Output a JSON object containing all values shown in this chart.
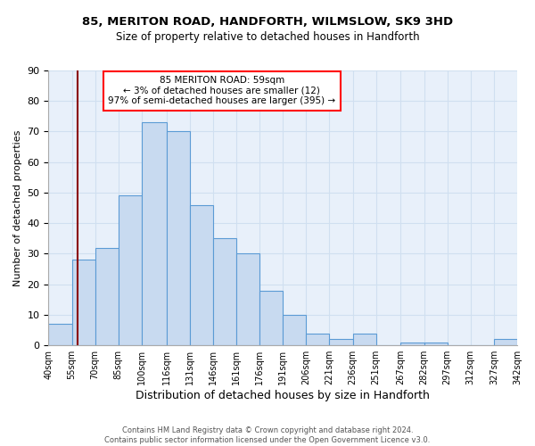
{
  "title1": "85, MERITON ROAD, HANDFORTH, WILMSLOW, SK9 3HD",
  "title2": "Size of property relative to detached houses in Handforth",
  "xlabel": "Distribution of detached houses by size in Handforth",
  "ylabel": "Number of detached properties",
  "footer1": "Contains HM Land Registry data © Crown copyright and database right 2024.",
  "footer2": "Contains public sector information licensed under the Open Government Licence v3.0.",
  "annotation_line1": "85 MERITON ROAD: 59sqm",
  "annotation_line2": "← 3% of detached houses are smaller (12)",
  "annotation_line3": "97% of semi-detached houses are larger (395) →",
  "bar_color": "#c8daf0",
  "bar_edge_color": "#5b9bd5",
  "red_line_x": 59,
  "bins": [
    40,
    55,
    70,
    85,
    100,
    116,
    131,
    146,
    161,
    176,
    191,
    206,
    221,
    236,
    251,
    267,
    282,
    297,
    312,
    327,
    342
  ],
  "bin_labels": [
    "40sqm",
    "55sqm",
    "70sqm",
    "85sqm",
    "100sqm",
    "116sqm",
    "131sqm",
    "146sqm",
    "161sqm",
    "176sqm",
    "191sqm",
    "206sqm",
    "221sqm",
    "236sqm",
    "251sqm",
    "267sqm",
    "282sqm",
    "297sqm",
    "312sqm",
    "327sqm",
    "342sqm"
  ],
  "counts": [
    7,
    28,
    32,
    49,
    73,
    70,
    46,
    35,
    30,
    18,
    10,
    4,
    2,
    4,
    0,
    1,
    1,
    0,
    0,
    2
  ],
  "ylim": [
    0,
    90
  ],
  "yticks": [
    0,
    10,
    20,
    30,
    40,
    50,
    60,
    70,
    80,
    90
  ],
  "grid_color": "#d0dff0",
  "bg_color": "#e8f0fa"
}
